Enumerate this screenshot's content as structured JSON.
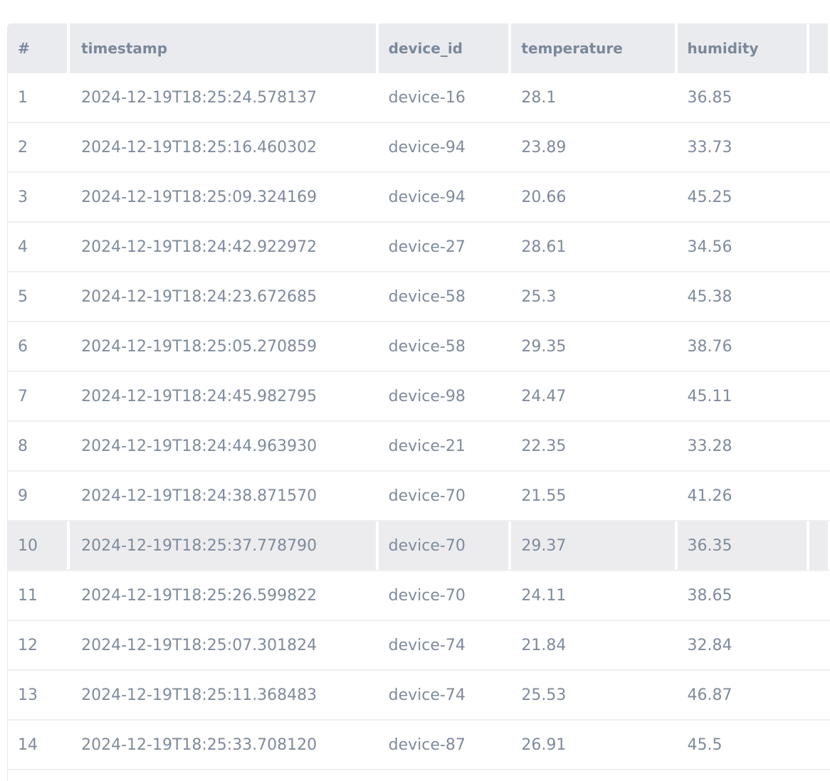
{
  "columns": [
    "#",
    "timestamp",
    "device_id",
    "temperature",
    "humidity",
    ""
  ],
  "selected_row": "10",
  "rows": [
    [
      "1",
      "2024-12-19T18:25:24.578137",
      "device-16",
      "28.1",
      "36.85"
    ],
    [
      "2",
      "2024-12-19T18:25:16.460302",
      "device-94",
      "23.89",
      "33.73"
    ],
    [
      "3",
      "2024-12-19T18:25:09.324169",
      "device-94",
      "20.66",
      "45.25"
    ],
    [
      "4",
      "2024-12-19T18:24:42.922972",
      "device-27",
      "28.61",
      "34.56"
    ],
    [
      "5",
      "2024-12-19T18:24:23.672685",
      "device-58",
      "25.3",
      "45.38"
    ],
    [
      "6",
      "2024-12-19T18:25:05.270859",
      "device-58",
      "29.35",
      "38.76"
    ],
    [
      "7",
      "2024-12-19T18:24:45.982795",
      "device-98",
      "24.47",
      "45.11"
    ],
    [
      "8",
      "2024-12-19T18:24:44.963930",
      "device-21",
      "22.35",
      "33.28"
    ],
    [
      "9",
      "2024-12-19T18:24:38.871570",
      "device-70",
      "21.55",
      "41.26"
    ],
    [
      "10",
      "2024-12-19T18:25:37.778790",
      "device-70",
      "29.37",
      "36.35"
    ],
    [
      "11",
      "2024-12-19T18:25:26.599822",
      "device-70",
      "24.11",
      "38.65"
    ],
    [
      "12",
      "2024-12-19T18:25:07.301824",
      "device-74",
      "21.84",
      "32.84"
    ],
    [
      "13",
      "2024-12-19T18:25:11.368483",
      "device-74",
      "25.53",
      "46.87"
    ],
    [
      "14",
      "2024-12-19T18:25:33.708120",
      "device-87",
      "26.91",
      "45.5"
    ]
  ]
}
